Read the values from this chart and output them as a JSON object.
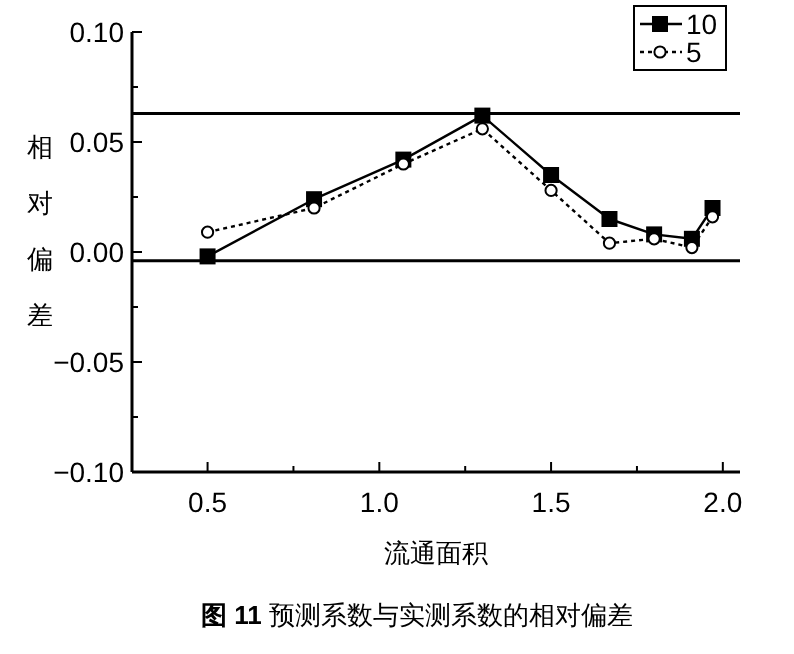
{
  "chart_data": {
    "type": "line",
    "title": "**图 11**  预测系数与实测系数的相对偏差",
    "xlabel": "流通面积",
    "ylabel": "相对偏差",
    "xlim": [
      0.28,
      2.05
    ],
    "ylim": [
      -0.1,
      0.1
    ],
    "xticks": [
      0.5,
      {
        "value": 0.75,
        "label": null
      },
      {
        "value": 1,
        "label": "1.0"
      },
      {
        "value": 1.25,
        "label": null
      },
      1.5,
      {
        "value": 1.75,
        "label": null
      },
      {
        "value": 2,
        "label": "2.0"
      }
    ],
    "yticks": [
      {
        "value": -0.1,
        "label": "−0.10"
      },
      {
        "value": -0.075,
        "label": null
      },
      {
        "value": -0.05,
        "label": "−0.05"
      },
      {
        "value": -0.025,
        "label": null
      },
      {
        "value": 0,
        "label": "0.00"
      },
      {
        "value": 0.025,
        "label": null
      },
      0.05,
      {
        "value": 0.075,
        "label": null
      },
      {
        "value": 0.1,
        "label": "0.10"
      }
    ],
    "x": [
      0.5,
      0.81,
      1.07,
      1.3,
      1.5,
      1.67,
      1.8,
      1.91,
      1.97
    ],
    "series": [
      {
        "name": "10",
        "color": "#000000",
        "marker": "square",
        "line_style": "solid",
        "values": [
          -0.002,
          0.024,
          0.042,
          0.062,
          0.035,
          0.015,
          0.008,
          0.006,
          0.02
        ]
      },
      {
        "name": "5",
        "color": "#000000",
        "marker": "circle",
        "line_style": "dotted",
        "values": [
          0.009,
          0.02,
          0.04,
          0.056,
          0.028,
          0.004,
          0.006,
          0.002,
          0.016
        ]
      }
    ],
    "ref_lines": [
      {
        "axis": "y",
        "value": 0.063
      },
      {
        "axis": "y",
        "value": -0.004
      }
    ],
    "legend": "top right",
    "grid": false
  }
}
